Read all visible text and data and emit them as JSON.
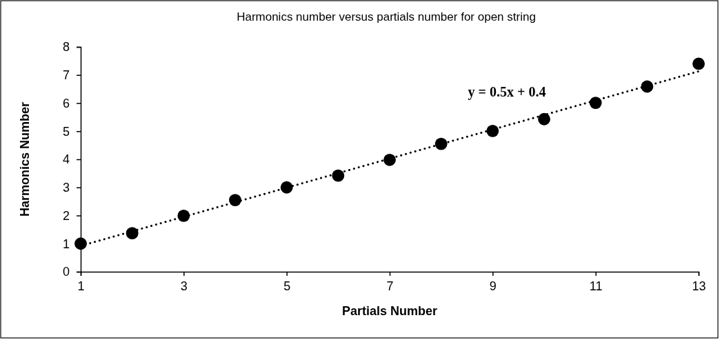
{
  "chart_data": {
    "type": "scatter",
    "title": "Harmonics number versus partials number for open string",
    "xlabel": "Partials Number",
    "ylabel": "Harmonics Number",
    "x": [
      1,
      2,
      3,
      4,
      5,
      6,
      7,
      8,
      9,
      10,
      11,
      12,
      13
    ],
    "series": [
      {
        "color": "#000000",
        "values": [
          1.0,
          1.37,
          1.99,
          2.55,
          3.0,
          3.42,
          3.98,
          4.55,
          5.01,
          5.43,
          6.01,
          6.59,
          7.4
        ]
      },
      {
        "type": "line",
        "color": "#000000",
        "x": [
          1,
          13
        ],
        "values": [
          0.92,
          7.13
        ],
        "line_style": "dotted",
        "marker": "none"
      }
    ],
    "annotations": [
      "y = 0.5x + 0.4"
    ],
    "xlim": [
      1,
      13
    ],
    "xticks": [
      1,
      3,
      5,
      7,
      9,
      11,
      13
    ],
    "ylim": [
      0,
      8
    ],
    "yticks": [
      0,
      1,
      2,
      3,
      4,
      5,
      6,
      7,
      8
    ],
    "grid": false,
    "marker": "circle"
  }
}
